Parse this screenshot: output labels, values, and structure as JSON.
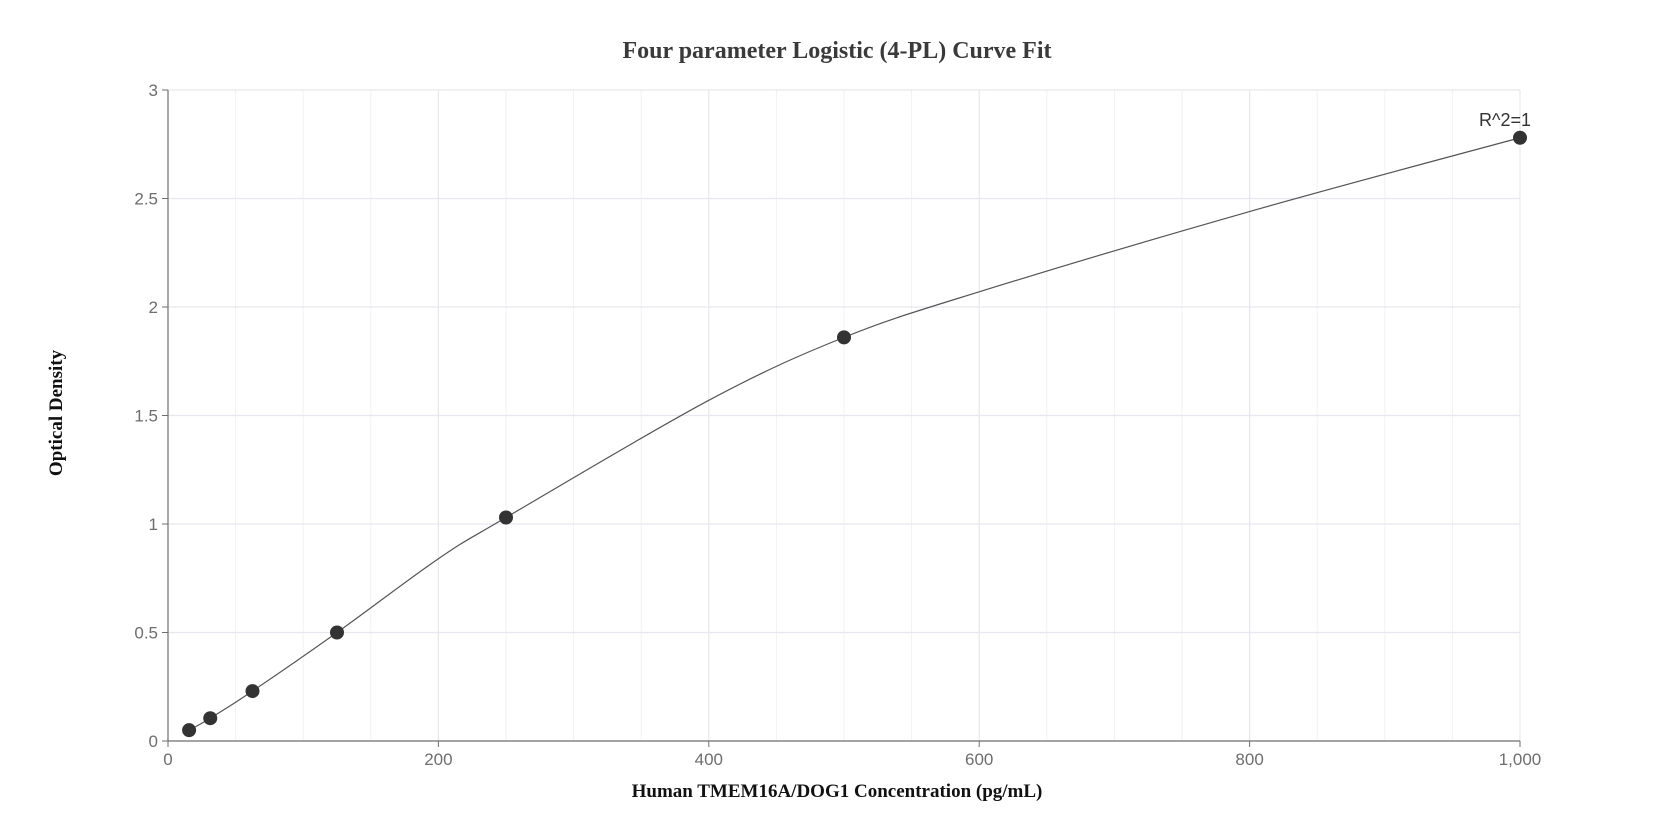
{
  "chart_data": {
    "type": "scatter",
    "title": "Four parameter Logistic (4-PL) Curve Fit",
    "xlabel": "Human TMEM16A/DOG1 Concentration (pg/mL)",
    "ylabel": "Optical Density",
    "xlim": [
      0,
      1000
    ],
    "ylim": [
      0,
      3
    ],
    "x_ticks": [
      "0",
      "200",
      "400",
      "600",
      "800",
      "1,000"
    ],
    "y_ticks": [
      "0",
      "0.5",
      "1",
      "1.5",
      "2",
      "2.5",
      "3"
    ],
    "grid": true,
    "legend": "none",
    "series": [
      {
        "x": [
          15.6,
          31.25,
          62.5,
          125,
          250,
          500,
          1000
        ],
        "y": [
          0.05,
          0.105,
          0.23,
          0.5,
          1.03,
          1.86,
          2.78
        ]
      }
    ],
    "fit_curve": {
      "model": "4-PL",
      "x": [
        15.6,
        31.25,
        62.5,
        125,
        200,
        250,
        400,
        500,
        600,
        800,
        1000
      ],
      "y": [
        0.05,
        0.105,
        0.23,
        0.5,
        0.84,
        1.03,
        1.57,
        1.86,
        2.07,
        2.44,
        2.78
      ]
    },
    "annotation": "R^2=1",
    "colors": {
      "point": "#333333",
      "curve": "#555555",
      "grid": "#e6e8ef",
      "axis": "#6e6e6e"
    }
  }
}
